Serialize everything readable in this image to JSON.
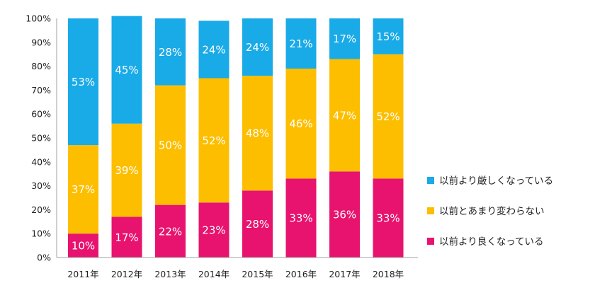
{
  "chart_data": {
    "type": "bar",
    "stacked": true,
    "percent_stacked": true,
    "categories": [
      "2011年",
      "2012年",
      "2013年",
      "2014年",
      "2015年",
      "2016年",
      "2017年",
      "2018年"
    ],
    "series": [
      {
        "name": "以前より良くなっている",
        "color": "#E8136E",
        "values": [
          10,
          17,
          22,
          23,
          28,
          33,
          36,
          33
        ],
        "labels": [
          "10%",
          "17%",
          "22%",
          "23%",
          "28%",
          "33%",
          "36%",
          "33%"
        ]
      },
      {
        "name": "以前とあまり変わらない",
        "color": "#FDBE00",
        "values": [
          37,
          39,
          50,
          52,
          48,
          46,
          47,
          52
        ],
        "labels": [
          "37%",
          "39%",
          "50%",
          "52%",
          "48%",
          "46%",
          "47%",
          "52%"
        ]
      },
      {
        "name": "以前より厳しくなっている",
        "color": "#19AAE8",
        "values": [
          53,
          45,
          28,
          24,
          24,
          21,
          17,
          15
        ],
        "labels": [
          "53%",
          "45%",
          "28%",
          "24%",
          "24%",
          "21%",
          "17%",
          "15%"
        ]
      }
    ],
    "ylim": [
      0,
      100
    ],
    "y_ticks": [
      "0%",
      "10%",
      "20%",
      "30%",
      "40%",
      "50%",
      "60%",
      "70%",
      "80%",
      "90%",
      "100%"
    ],
    "grid": false,
    "legend_position": "right",
    "legend_order": [
      "以前より厳しくなっている",
      "以前とあまり変わらない",
      "以前より良くなっている"
    ]
  }
}
